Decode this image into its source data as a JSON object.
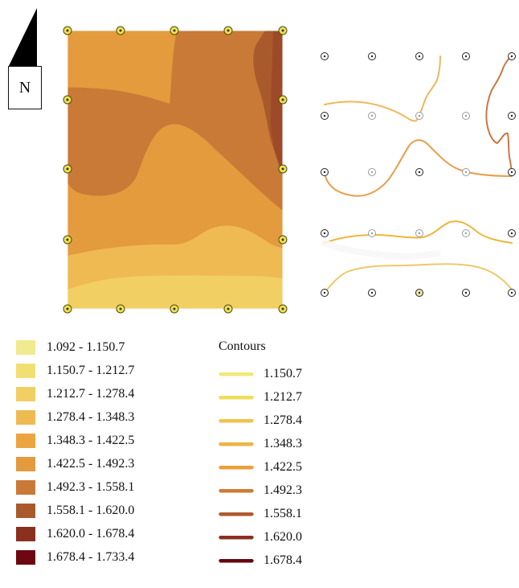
{
  "north": {
    "label": "N"
  },
  "legend": {
    "items": [
      {
        "label": "1.092 - 1.150.7",
        "color": "#f2ea8f"
      },
      {
        "label": "1.150.7 - 1.212.7",
        "color": "#f1df72"
      },
      {
        "label": "1.212.7 - 1.278.4",
        "color": "#f1cf63"
      },
      {
        "label": "1.278.4 - 1.348.3",
        "color": "#efba52"
      },
      {
        "label": "1.348.3 - 1.422.5",
        "color": "#eca43f"
      },
      {
        "label": "1.422.5 - 1.492.3",
        "color": "#e39b3d"
      },
      {
        "label": "1.492.3 - 1.558.1",
        "color": "#c97a36"
      },
      {
        "label": "1.558.1 - 1.620.0",
        "color": "#a85a2d"
      },
      {
        "label": "1.620.0 - 1.678.4",
        "color": "#8b2f1f"
      },
      {
        "label": "1.678.4 - 1.733.4",
        "color": "#6d0712"
      }
    ]
  },
  "contours": {
    "title": "Contours",
    "items": [
      {
        "label": "1.150.7",
        "color": "#f1e87a"
      },
      {
        "label": "1.212.7",
        "color": "#f0de58"
      },
      {
        "label": "1.278.4",
        "color": "#f1c34f"
      },
      {
        "label": "1.348.3",
        "color": "#efb347"
      },
      {
        "label": "1.422.5",
        "color": "#ec9f38"
      },
      {
        "label": "1.492.3",
        "color": "#cf7b32"
      },
      {
        "label": "1.558.1",
        "color": "#ad5b2d"
      },
      {
        "label": "1.620.0",
        "color": "#8c2f1f"
      },
      {
        "label": "1.678.4",
        "color": "#650711"
      }
    ]
  }
}
